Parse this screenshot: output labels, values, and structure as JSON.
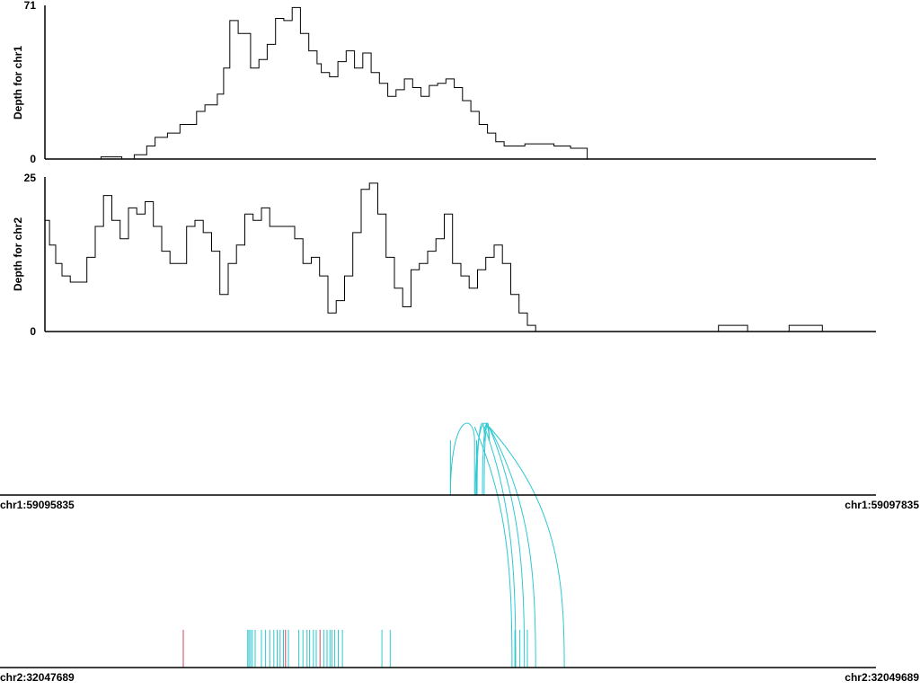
{
  "colors": {
    "depth_line": "#000000",
    "arc": "#2ec8d0",
    "read_split": "#2ec8d0",
    "read_other": "#d04060",
    "axis": "#000000"
  },
  "chart_data": [
    {
      "type": "line",
      "ylabel": "Depth for chr1",
      "ylim": [
        0,
        71
      ],
      "yticks": [
        "71",
        "0"
      ],
      "x": [
        59095835,
        59095880,
        59095920,
        59095970,
        59096000,
        59096020,
        59096050,
        59096080,
        59096100,
        59096130,
        59096160,
        59096200,
        59096220,
        59096250,
        59096265,
        59096280,
        59096300,
        59096330,
        59096350,
        59096370,
        59096390,
        59096410,
        59096430,
        59096450,
        59096470,
        59096490,
        59096500,
        59096520,
        59096540,
        59096560,
        59096580,
        59096600,
        59096620,
        59096640,
        59096660,
        59096680,
        59096700,
        59096720,
        59096740,
        59096760,
        59096780,
        59096800,
        59096820,
        59096840,
        59096860,
        59096880,
        59096900,
        59096920,
        59096940,
        59096960,
        59096990,
        59097020,
        59097060,
        59097100,
        59097140,
        59097200,
        59097835
      ],
      "values": [
        0,
        0,
        0,
        1,
        1,
        0,
        2,
        6,
        10,
        12,
        16,
        22,
        25,
        30,
        42,
        64,
        58,
        42,
        46,
        53,
        65,
        64,
        70,
        58,
        50,
        44,
        40,
        38,
        45,
        50,
        42,
        49,
        40,
        35,
        29,
        32,
        37,
        33,
        29,
        34,
        35,
        37,
        33,
        27,
        22,
        16,
        12,
        8,
        6,
        6,
        7,
        7,
        6,
        5,
        0,
        0,
        0
      ]
    },
    {
      "type": "line",
      "ylabel": "Depth for chr2",
      "ylim": [
        0,
        25
      ],
      "yticks": [
        "25",
        "0"
      ],
      "x": [
        32047689,
        32047700,
        32047715,
        32047730,
        32047750,
        32047770,
        32047790,
        32047810,
        32047830,
        32047850,
        32047870,
        32047890,
        32047910,
        32047930,
        32047950,
        32047970,
        32047990,
        32048010,
        32048030,
        32048050,
        32048070,
        32048090,
        32048110,
        32048130,
        32048150,
        32048170,
        32048190,
        32048210,
        32048230,
        32048250,
        32048270,
        32048290,
        32048310,
        32048330,
        32048350,
        32048370,
        32048390,
        32048410,
        32048430,
        32048450,
        32048470,
        32048490,
        32048510,
        32048530,
        32048550,
        32048570,
        32048590,
        32048610,
        32048630,
        32048650,
        32048670,
        32048690,
        32048710,
        32048730,
        32048750,
        32048770,
        32048790,
        32048810,
        32048830,
        32048850,
        32048870,
        32048890,
        32048910,
        32048930,
        32048950,
        32048970,
        32048990,
        32049010,
        32049030,
        32049050,
        32049070,
        32049100,
        32049300,
        32049310,
        32049370,
        32049380,
        32049470,
        32049480,
        32049550,
        32049560,
        32049689
      ],
      "values": [
        18,
        14,
        11,
        9,
        8,
        8,
        12,
        17,
        22,
        18,
        15,
        20,
        19,
        21,
        17,
        13,
        11,
        11,
        17,
        18,
        16,
        13,
        6,
        11,
        14,
        19,
        18,
        20,
        17,
        17,
        17,
        15,
        11,
        12,
        9,
        3,
        5,
        9,
        16,
        23,
        24,
        19,
        12,
        7,
        4,
        10,
        11,
        13,
        15,
        19,
        11,
        9,
        7,
        10,
        12,
        14,
        11,
        6,
        3,
        1,
        0,
        0,
        0,
        0,
        0,
        0,
        0,
        0,
        0,
        0,
        0,
        0,
        0,
        1,
        1,
        0,
        0,
        1,
        1,
        0,
        0
      ]
    }
  ],
  "junctions": {
    "chr1_range": [
      59095835,
      59097835
    ],
    "chr2_range": [
      32047689,
      32049689
    ],
    "chr1_start_label": "chr1:59095835",
    "chr1_end_label": "chr1:59097835",
    "chr2_start_label": "chr2:32047689",
    "chr2_end_label": "chr2:32049689",
    "arcs": [
      {
        "chr1_a": 59096811,
        "chr1_b": 59096869
      },
      {
        "chr1_a": 59096871,
        "chr1_b": 59096904
      },
      {
        "chr1_a": 59096875,
        "chr1_b": 59096893
      },
      {
        "chr1_a": 59096888,
        "chr1_b": 59096904
      },
      {
        "chr1_a": 59096892,
        "chr1_b": 59096904
      }
    ],
    "links": [
      {
        "chr1": 59096869,
        "chr2": 32048813
      },
      {
        "chr1": 59096893,
        "chr2": 32048822
      },
      {
        "chr1": 59096904,
        "chr2": 32048843
      },
      {
        "chr1": 59096904,
        "chr2": 32048870
      },
      {
        "chr1": 59096904,
        "chr2": 32048939
      }
    ],
    "chr2_reads": [
      {
        "pos": 32048022,
        "kind": "other"
      },
      {
        "pos": 32048177,
        "kind": "split"
      },
      {
        "pos": 32048180,
        "kind": "split"
      },
      {
        "pos": 32048184,
        "kind": "split"
      },
      {
        "pos": 32048188,
        "kind": "split"
      },
      {
        "pos": 32048195,
        "kind": "split"
      },
      {
        "pos": 32048210,
        "kind": "split"
      },
      {
        "pos": 32048220,
        "kind": "split"
      },
      {
        "pos": 32048230,
        "kind": "split"
      },
      {
        "pos": 32048240,
        "kind": "split"
      },
      {
        "pos": 32048248,
        "kind": "split"
      },
      {
        "pos": 32048255,
        "kind": "split"
      },
      {
        "pos": 32048263,
        "kind": "split"
      },
      {
        "pos": 32048268,
        "kind": "other"
      },
      {
        "pos": 32048275,
        "kind": "split"
      },
      {
        "pos": 32048300,
        "kind": "split"
      },
      {
        "pos": 32048310,
        "kind": "split"
      },
      {
        "pos": 32048320,
        "kind": "split"
      },
      {
        "pos": 32048326,
        "kind": "split"
      },
      {
        "pos": 32048335,
        "kind": "split"
      },
      {
        "pos": 32048342,
        "kind": "split"
      },
      {
        "pos": 32048351,
        "kind": "other"
      },
      {
        "pos": 32048360,
        "kind": "split"
      },
      {
        "pos": 32048368,
        "kind": "split"
      },
      {
        "pos": 32048375,
        "kind": "split"
      },
      {
        "pos": 32048380,
        "kind": "split"
      },
      {
        "pos": 32048386,
        "kind": "split"
      },
      {
        "pos": 32048395,
        "kind": "split"
      },
      {
        "pos": 32048405,
        "kind": "split"
      },
      {
        "pos": 32048500,
        "kind": "split"
      },
      {
        "pos": 32048520,
        "kind": "split"
      },
      {
        "pos": 32048820,
        "kind": "split"
      },
      {
        "pos": 32048832,
        "kind": "split"
      },
      {
        "pos": 32048850,
        "kind": "split"
      }
    ]
  }
}
